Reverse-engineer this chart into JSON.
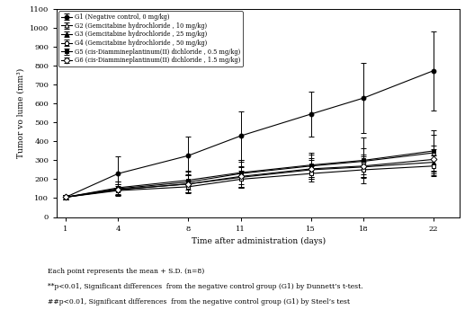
{
  "x": [
    1,
    4,
    8,
    11,
    15,
    18,
    22
  ],
  "groups": [
    {
      "key": "G1",
      "label": "G1 (Negative control, 0 mg/kg)",
      "mean": [
        105,
        230,
        325,
        430,
        545,
        630,
        775
      ],
      "sd": [
        10,
        90,
        100,
        130,
        120,
        185,
        210
      ],
      "marker": "o",
      "mfc": "black",
      "mec": "black"
    },
    {
      "key": "G2",
      "label": "G2 (Gemcitabine hydrochloride , 10 mg/kg)",
      "mean": [
        105,
        150,
        185,
        230,
        270,
        295,
        340
      ],
      "sd": [
        10,
        40,
        55,
        70,
        60,
        70,
        95
      ],
      "marker": "^",
      "mfc": "white",
      "mec": "black"
    },
    {
      "key": "G3",
      "label": "G3 (Gemcitabine hydrochloride , 25 mg/kg)",
      "mean": [
        105,
        145,
        175,
        210,
        250,
        265,
        290
      ],
      "sd": [
        10,
        30,
        45,
        55,
        50,
        55,
        70
      ],
      "marker": "^",
      "mfc": "black",
      "mec": "black"
    },
    {
      "key": "G4",
      "label": "G4 (Gemcitabine hydrochloride , 50 mg/kg)",
      "mean": [
        105,
        140,
        160,
        200,
        230,
        250,
        270
      ],
      "sd": [
        10,
        25,
        35,
        45,
        40,
        45,
        55
      ],
      "marker": "s",
      "mfc": "white",
      "mec": "black"
    },
    {
      "key": "G5",
      "label": "G5 (cis-Diammineplantinum(II) dichloride , 0.5 mg/kg)",
      "mean": [
        105,
        155,
        195,
        235,
        275,
        300,
        350
      ],
      "sd": [
        10,
        35,
        50,
        60,
        65,
        120,
        110
      ],
      "marker": "s",
      "mfc": "black",
      "mec": "black"
    },
    {
      "key": "G6",
      "label": "G6 (cis-Diammineplantinum(II) dichloride , 1.5 mg/kg)",
      "mean": [
        105,
        145,
        175,
        215,
        255,
        270,
        305
      ],
      "sd": [
        10,
        30,
        45,
        55,
        55,
        60,
        75
      ],
      "marker": "D",
      "mfc": "white",
      "mec": "black"
    }
  ],
  "xlabel": "Time after administration (days)",
  "ylabel": "Tumor vo lume (mm³)",
  "ylim": [
    0,
    1100
  ],
  "yticks": [
    0,
    100,
    200,
    300,
    400,
    500,
    600,
    700,
    800,
    900,
    1000,
    1100
  ],
  "xticks": [
    1,
    4,
    8,
    11,
    15,
    18,
    22
  ],
  "footnote_line1": "Each point represents the mean + S.D. (n=8)",
  "footnote_line2": "**p<0.01, Significant differences  from the negative control group (G1) by Dunnett’s t-test.",
  "footnote_line3": "##p<0.01, Significant differences  from the negative control group (G1) by Steel’s test",
  "background_color": "#ffffff",
  "line_color": "black",
  "linewidth": 0.8,
  "markersize": 3.5,
  "elinewidth": 0.7,
  "capsize": 2
}
